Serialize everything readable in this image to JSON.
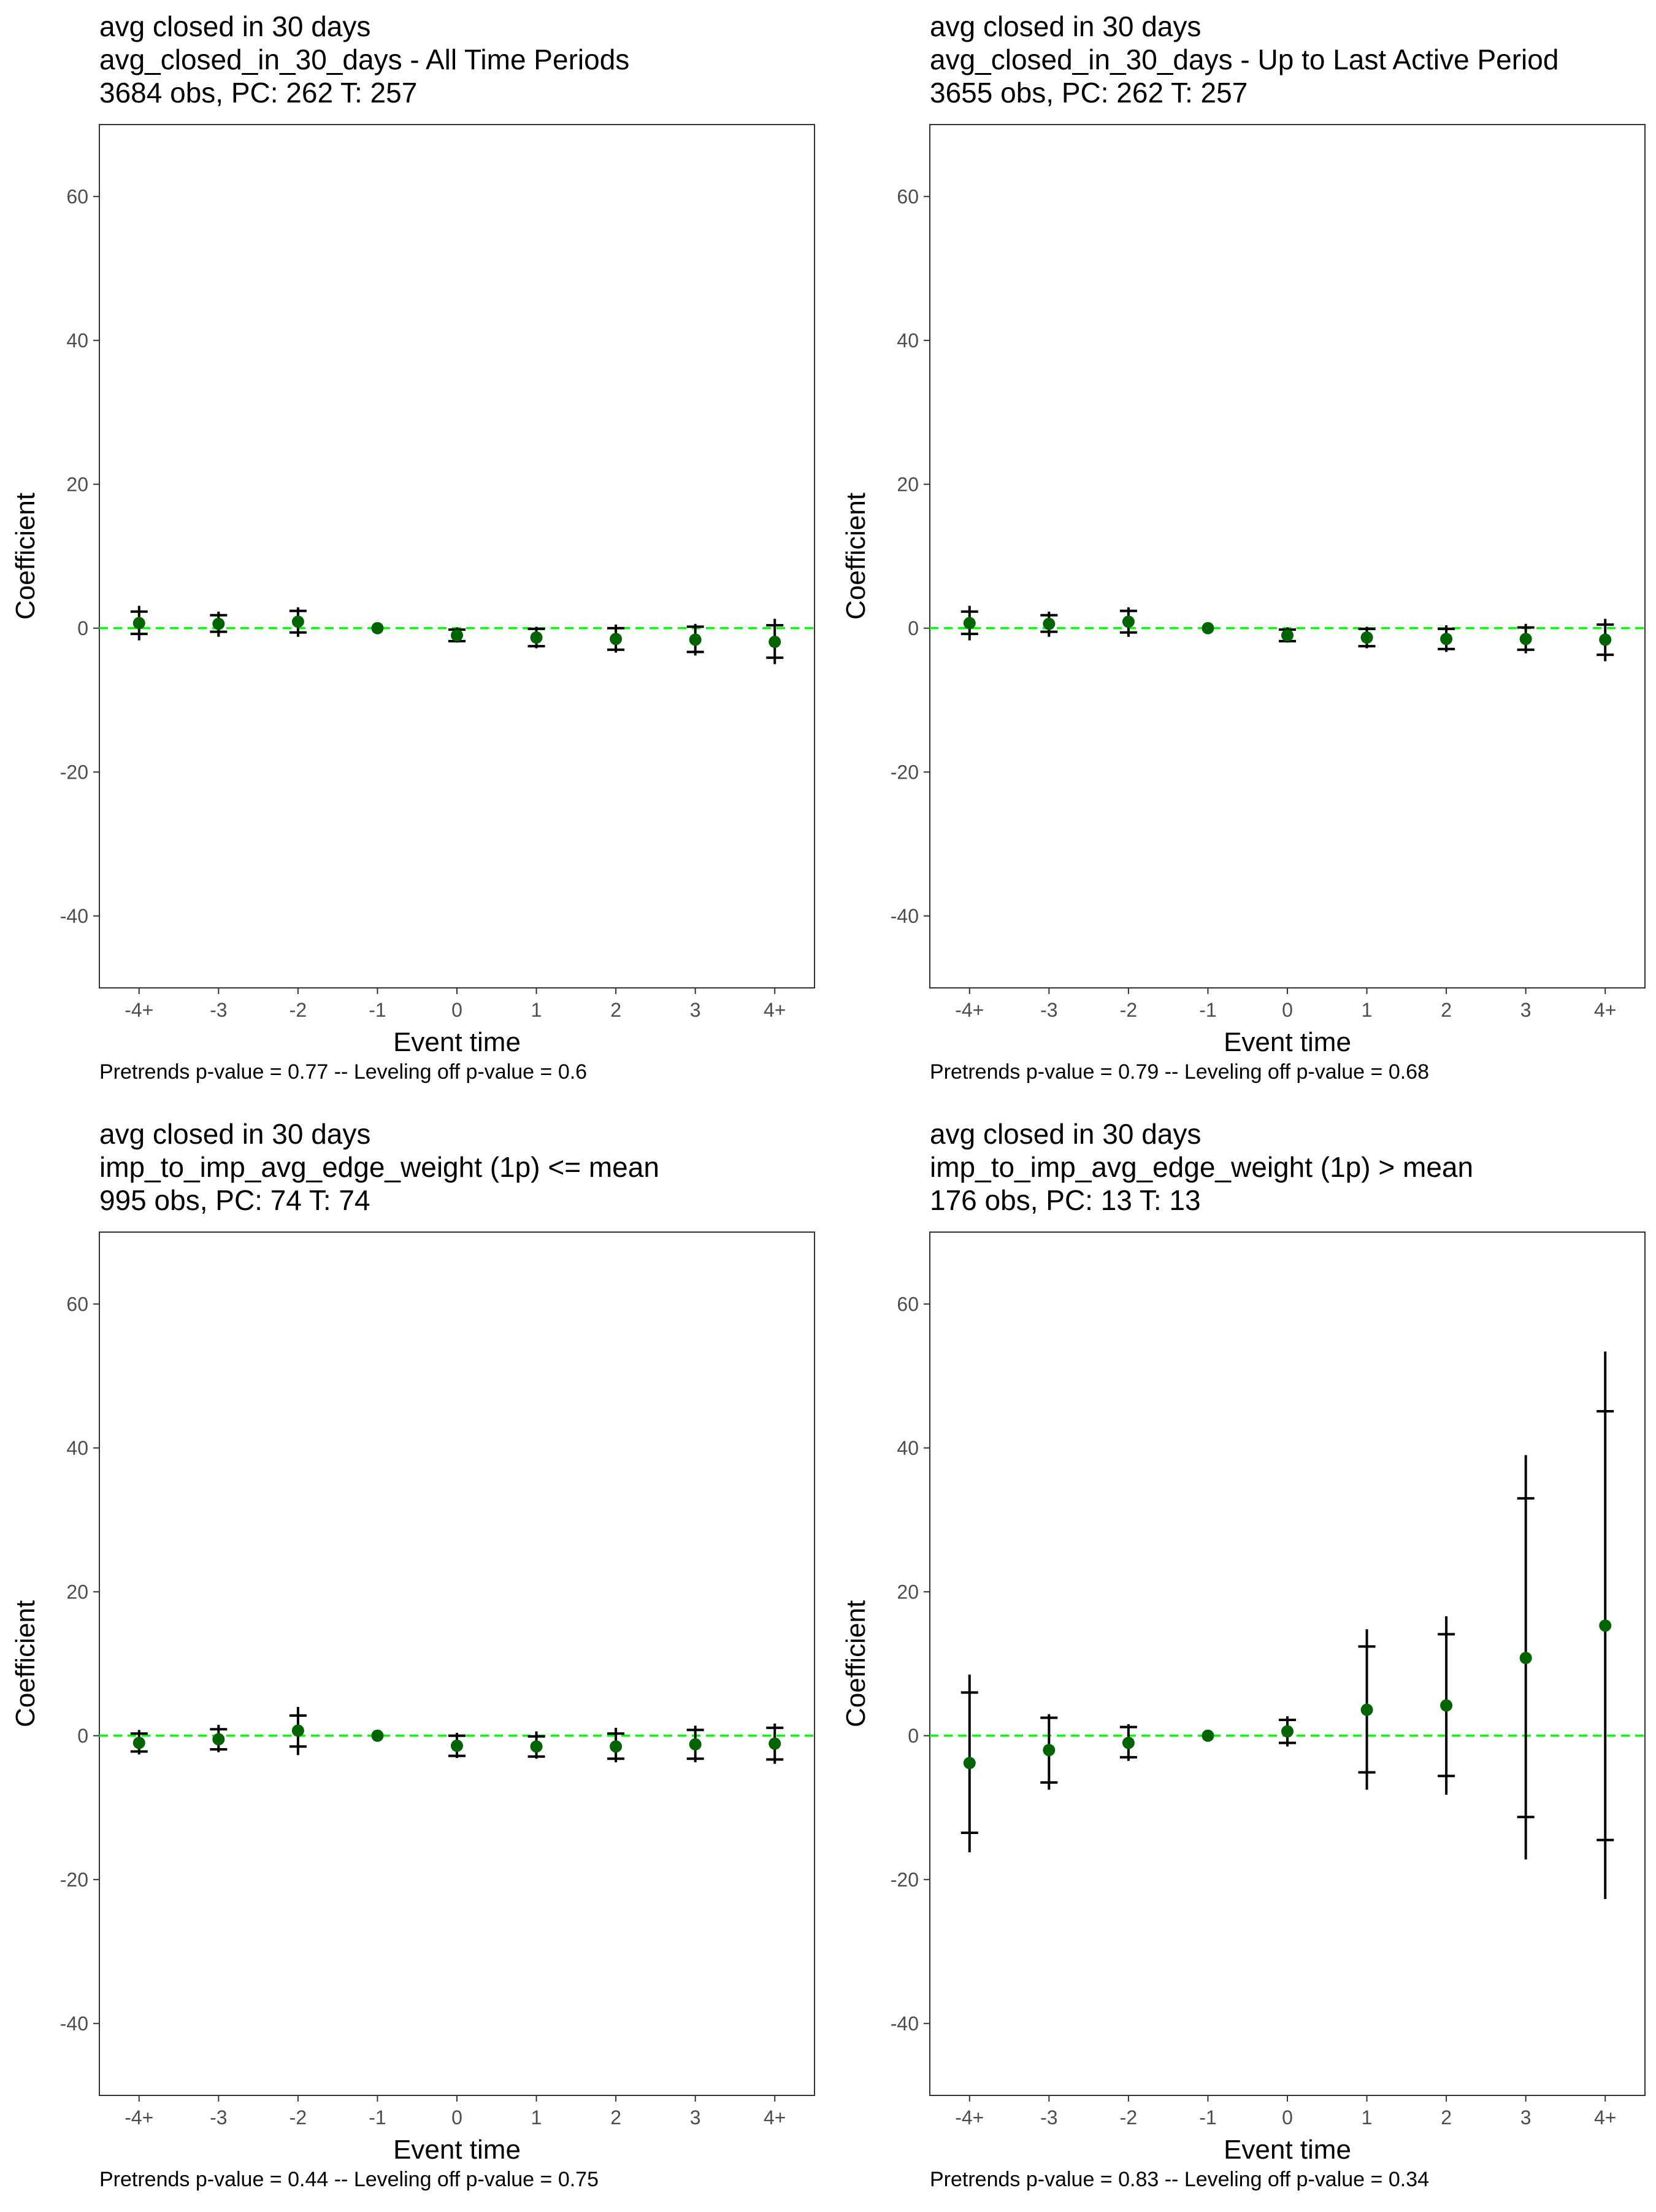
{
  "chart_data": [
    {
      "type": "scatter",
      "subtype": "event-study coefficient plot with confidence intervals",
      "title": "avg closed in 30 days",
      "subtitle": "avg_closed_in_30_days - All Time Periods",
      "caption": "3684 obs, PC: 262 T: 257",
      "xlabel": "Event time",
      "ylabel": "Coefficient",
      "categories": [
        "-4+",
        "-3",
        "-2",
        "-1",
        "0",
        "1",
        "2",
        "3",
        "4+"
      ],
      "ylim": [
        -50,
        70
      ],
      "yticks": [
        -40,
        -20,
        0,
        20,
        40,
        60
      ],
      "reference_line": {
        "y": 0,
        "style": "dashed",
        "color": "#00ff00"
      },
      "point_color": "#006400",
      "estimates": [
        0.7,
        0.6,
        0.9,
        0.0,
        -1.0,
        -1.3,
        -1.5,
        -1.6,
        -1.9
      ],
      "inner_ci": [
        [
          -0.8,
          2.3
        ],
        [
          -0.5,
          1.8
        ],
        [
          -0.6,
          2.4
        ],
        [
          0,
          0
        ],
        [
          -1.8,
          -0.2
        ],
        [
          -2.5,
          -0.1
        ],
        [
          -3.0,
          0.0
        ],
        [
          -3.3,
          0.2
        ],
        [
          -4.1,
          0.4
        ]
      ],
      "outer_ci": [
        [
          -1.7,
          3.1
        ],
        [
          -1.2,
          2.3
        ],
        [
          -1.2,
          2.9
        ],
        [
          0,
          0
        ],
        [
          -2.0,
          0.1
        ],
        [
          -2.8,
          0.2
        ],
        [
          -3.4,
          0.5
        ],
        [
          -3.8,
          0.6
        ],
        [
          -5.0,
          1.3
        ]
      ],
      "footnote": "Pretrends p-value = 0.77 -- Leveling off p-value = 0.6"
    },
    {
      "type": "scatter",
      "subtype": "event-study coefficient plot with confidence intervals",
      "title": "avg closed in 30 days",
      "subtitle": "avg_closed_in_30_days - Up to Last Active Period",
      "caption": "3655 obs, PC: 262 T: 257",
      "xlabel": "Event time",
      "ylabel": "Coefficient",
      "categories": [
        "-4+",
        "-3",
        "-2",
        "-1",
        "0",
        "1",
        "2",
        "3",
        "4+"
      ],
      "ylim": [
        -50,
        70
      ],
      "yticks": [
        -40,
        -20,
        0,
        20,
        40,
        60
      ],
      "reference_line": {
        "y": 0,
        "style": "dashed",
        "color": "#00ff00"
      },
      "point_color": "#006400",
      "estimates": [
        0.7,
        0.6,
        0.9,
        0.0,
        -1.0,
        -1.3,
        -1.5,
        -1.5,
        -1.6
      ],
      "inner_ci": [
        [
          -0.8,
          2.3
        ],
        [
          -0.5,
          1.8
        ],
        [
          -0.6,
          2.4
        ],
        [
          0,
          0
        ],
        [
          -1.8,
          -0.2
        ],
        [
          -2.5,
          -0.1
        ],
        [
          -2.9,
          -0.1
        ],
        [
          -3.0,
          0.1
        ],
        [
          -3.7,
          0.5
        ]
      ],
      "outer_ci": [
        [
          -1.7,
          3.1
        ],
        [
          -1.2,
          2.3
        ],
        [
          -1.2,
          2.9
        ],
        [
          0,
          0
        ],
        [
          -2.0,
          0.1
        ],
        [
          -2.8,
          0.2
        ],
        [
          -3.3,
          0.4
        ],
        [
          -3.5,
          0.6
        ],
        [
          -4.6,
          1.3
        ]
      ],
      "footnote": "Pretrends p-value = 0.79 -- Leveling off p-value = 0.68"
    },
    {
      "type": "scatter",
      "subtype": "event-study coefficient plot with confidence intervals",
      "title": "avg closed in 30 days",
      "subtitle": "imp_to_imp_avg_edge_weight (1p) <= mean",
      "caption": "995 obs, PC: 74 T: 74",
      "xlabel": "Event time",
      "ylabel": "Coefficient",
      "categories": [
        "-4+",
        "-3",
        "-2",
        "-1",
        "0",
        "1",
        "2",
        "3",
        "4+"
      ],
      "ylim": [
        -50,
        70
      ],
      "yticks": [
        -40,
        -20,
        0,
        20,
        40,
        60
      ],
      "reference_line": {
        "y": 0,
        "style": "dashed",
        "color": "#00ff00"
      },
      "point_color": "#006400",
      "estimates": [
        -1.0,
        -0.5,
        0.7,
        0.0,
        -1.4,
        -1.5,
        -1.5,
        -1.2,
        -1.1
      ],
      "inner_ci": [
        [
          -2.2,
          0.3
        ],
        [
          -1.9,
          0.9
        ],
        [
          -1.5,
          2.8
        ],
        [
          0,
          0
        ],
        [
          -2.8,
          0.0
        ],
        [
          -2.9,
          -0.1
        ],
        [
          -3.2,
          0.3
        ],
        [
          -3.2,
          0.8
        ],
        [
          -3.3,
          1.1
        ]
      ],
      "outer_ci": [
        [
          -2.6,
          0.8
        ],
        [
          -2.3,
          1.5
        ],
        [
          -2.7,
          4.0
        ],
        [
          0,
          0
        ],
        [
          -3.1,
          0.4
        ],
        [
          -3.2,
          0.6
        ],
        [
          -3.7,
          1.1
        ],
        [
          -3.7,
          1.4
        ],
        [
          -3.9,
          1.7
        ]
      ],
      "footnote": "Pretrends p-value = 0.44 -- Leveling off p-value = 0.75"
    },
    {
      "type": "scatter",
      "subtype": "event-study coefficient plot with confidence intervals",
      "title": "avg closed in 30 days",
      "subtitle": "imp_to_imp_avg_edge_weight (1p) > mean",
      "caption": "176 obs, PC: 13 T: 13",
      "xlabel": "Event time",
      "ylabel": "Coefficient",
      "categories": [
        "-4+",
        "-3",
        "-2",
        "-1",
        "0",
        "1",
        "2",
        "3",
        "4+"
      ],
      "ylim": [
        -50,
        70
      ],
      "yticks": [
        -40,
        -20,
        0,
        20,
        40,
        60
      ],
      "reference_line": {
        "y": 0,
        "style": "dashed",
        "color": "#00ff00"
      },
      "point_color": "#006400",
      "estimates": [
        -3.8,
        -2.0,
        -1.0,
        0.0,
        0.6,
        3.6,
        4.2,
        10.8,
        15.3
      ],
      "inner_ci": [
        [
          -13.5,
          6.0
        ],
        [
          -6.5,
          2.5
        ],
        [
          -3.0,
          1.2
        ],
        [
          0,
          0
        ],
        [
          -1.0,
          2.2
        ],
        [
          -5.1,
          12.4
        ],
        [
          -5.6,
          14.1
        ],
        [
          -11.3,
          33.0
        ],
        [
          -14.5,
          45.1
        ]
      ],
      "outer_ci": [
        [
          -16.2,
          8.5
        ],
        [
          -7.5,
          3.0
        ],
        [
          -3.5,
          1.6
        ],
        [
          0,
          0
        ],
        [
          -1.5,
          2.7
        ],
        [
          -7.5,
          14.8
        ],
        [
          -8.2,
          16.6
        ],
        [
          -17.2,
          39.0
        ],
        [
          -22.7,
          53.4
        ]
      ],
      "footnote": "Pretrends p-value = 0.83 -- Leveling off p-value = 0.34"
    }
  ]
}
